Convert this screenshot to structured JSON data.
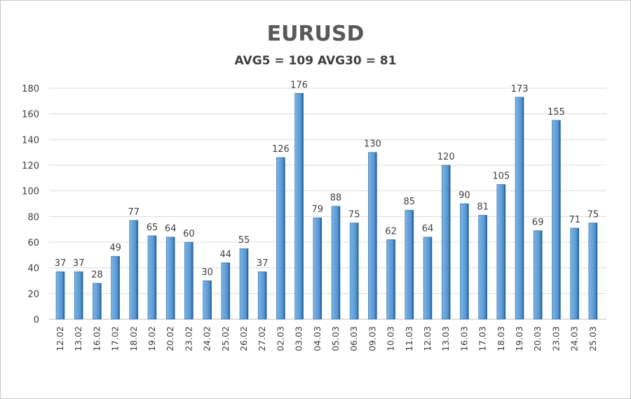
{
  "chart_data": {
    "type": "bar",
    "title": "EURUSD",
    "subtitle": "AVG5 = 109 AVG30 = 81",
    "xlabel": "",
    "ylabel": "",
    "ylim": [
      0,
      180
    ],
    "yticks": [
      0,
      20,
      40,
      60,
      80,
      100,
      120,
      140,
      160,
      180
    ],
    "grid": true,
    "legend": "none",
    "bar_color": "#5b9bd5",
    "categories": [
      "12.02",
      "13.02",
      "16.02",
      "17.02",
      "18.02",
      "19.02",
      "20.02",
      "23.02",
      "24.02",
      "25.02",
      "26.02",
      "27.02",
      "02.03",
      "03.03",
      "04.03",
      "05.03",
      "06.03",
      "09.03",
      "10.03",
      "11.03",
      "12.03",
      "13.03",
      "16.03",
      "17.03",
      "18.03",
      "19.03",
      "20.03",
      "23.03",
      "24.03",
      "25.03"
    ],
    "values": [
      37,
      37,
      28,
      49,
      77,
      65,
      64,
      60,
      30,
      44,
      55,
      37,
      126,
      176,
      79,
      88,
      75,
      130,
      62,
      85,
      64,
      120,
      90,
      81,
      105,
      173,
      69,
      155,
      71,
      75
    ]
  }
}
